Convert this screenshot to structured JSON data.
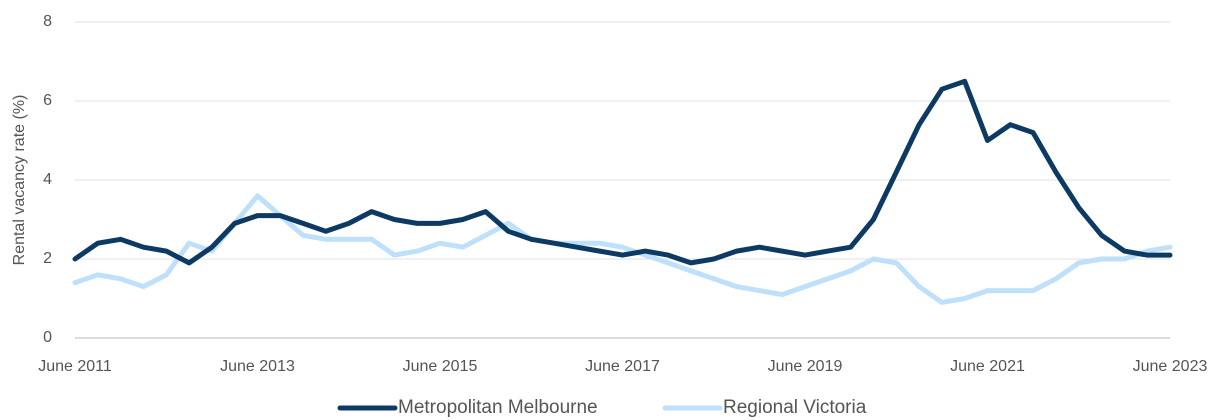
{
  "chart_data": {
    "type": "line",
    "ylabel": "Rental vacancy rate (%)",
    "categories": [
      "June 2011",
      null,
      null,
      null,
      null,
      null,
      null,
      null,
      "June 2013",
      null,
      null,
      null,
      null,
      null,
      null,
      null,
      "June 2015",
      null,
      null,
      null,
      null,
      null,
      null,
      null,
      "June 2017",
      null,
      null,
      null,
      null,
      null,
      null,
      null,
      "June 2019",
      null,
      null,
      null,
      null,
      null,
      null,
      null,
      "June 2021",
      null,
      null,
      null,
      null,
      null,
      null,
      null,
      "June 2023"
    ],
    "series": [
      {
        "name": "Metropolitan Melbourne",
        "color": "#0d3a63",
        "values": [
          2.0,
          2.4,
          2.5,
          2.3,
          2.2,
          1.9,
          2.3,
          2.9,
          3.1,
          3.1,
          2.9,
          2.7,
          2.9,
          3.2,
          3.0,
          2.9,
          2.9,
          3.0,
          3.2,
          2.7,
          2.5,
          2.4,
          2.3,
          2.2,
          2.1,
          2.2,
          2.1,
          1.9,
          2.0,
          2.2,
          2.3,
          2.2,
          2.1,
          2.2,
          2.3,
          3.0,
          4.2,
          5.4,
          6.3,
          6.5,
          5.0,
          5.4,
          5.2,
          4.2,
          3.3,
          2.6,
          2.2,
          2.1,
          2.1
        ]
      },
      {
        "name": "Regional Victoria",
        "color": "#bfe0fa",
        "values": [
          1.4,
          1.6,
          1.5,
          1.3,
          1.6,
          2.4,
          2.2,
          2.9,
          3.6,
          3.1,
          2.6,
          2.5,
          2.5,
          2.5,
          2.1,
          2.2,
          2.4,
          2.3,
          2.6,
          2.9,
          2.5,
          2.4,
          2.4,
          2.4,
          2.3,
          2.1,
          1.9,
          1.7,
          1.5,
          1.3,
          1.2,
          1.1,
          1.3,
          1.5,
          1.7,
          2.0,
          1.9,
          1.3,
          0.9,
          1.0,
          1.2,
          1.2,
          1.2,
          1.5,
          1.9,
          2.0,
          2.0,
          2.2,
          2.3
        ]
      }
    ],
    "ylim": [
      0,
      8
    ],
    "yticks": [
      0,
      2,
      4,
      6,
      8
    ],
    "grid": true,
    "legend": "bottom"
  }
}
